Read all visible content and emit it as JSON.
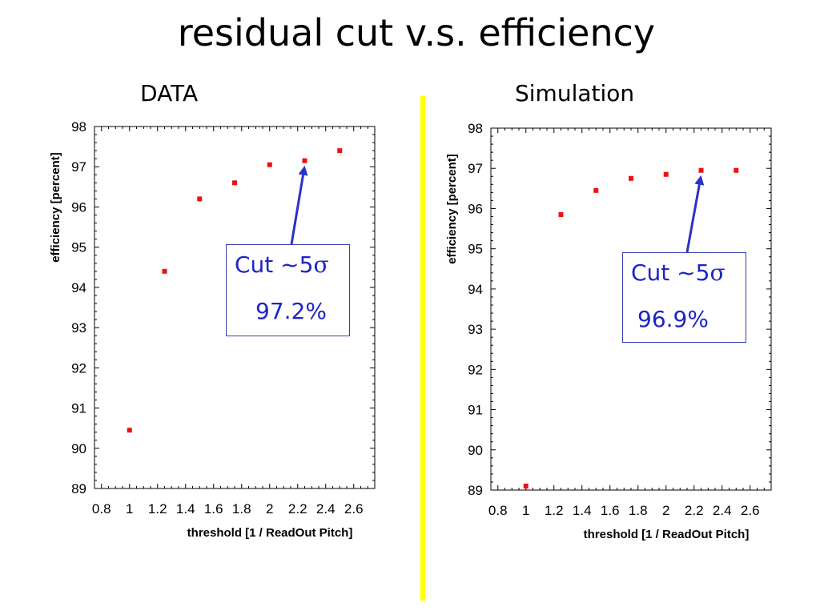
{
  "title": "residual cut v.s. efficiency",
  "panels": {
    "left": {
      "label": "DATA",
      "callout_prefix": "Cut ~5",
      "callout_symbol": "σ",
      "callout_value": "97.2%"
    },
    "right": {
      "label": "Simulation",
      "callout_prefix": "Cut ~5",
      "callout_symbol": "σ",
      "callout_value": "96.9%"
    }
  },
  "colors": {
    "marker": "#ee1111",
    "callout_text": "#1d24c8",
    "arrow": "#2a32c8",
    "divider": "#ffff00"
  },
  "chart_data": [
    {
      "type": "scatter",
      "title": "DATA",
      "xlabel": "threshold [1 / ReadOut Pitch]",
      "ylabel": "efficiency [percent]",
      "xlim": [
        0.75,
        2.75
      ],
      "ylim": [
        89,
        98
      ],
      "xticks": [
        "0.8",
        "1",
        "1.2",
        "1.4",
        "1.6",
        "1.8",
        "2",
        "2.2",
        "2.4",
        "2.6"
      ],
      "yticks": [
        "89",
        "90",
        "91",
        "92",
        "93",
        "94",
        "95",
        "96",
        "97",
        "98"
      ],
      "x": [
        1.0,
        1.25,
        1.5,
        1.75,
        2.0,
        2.25,
        2.5
      ],
      "y": [
        90.45,
        94.4,
        96.2,
        96.6,
        97.05,
        97.15,
        97.4
      ],
      "annotation": {
        "x": 2.25,
        "y": 97.15
      },
      "grid": false
    },
    {
      "type": "scatter",
      "title": "Simulation",
      "xlabel": "threshold [1 / ReadOut Pitch]",
      "ylabel": "efficiency [percent]",
      "xlim": [
        0.75,
        2.75
      ],
      "ylim": [
        89,
        98
      ],
      "xticks": [
        "0.8",
        "1",
        "1.2",
        "1.4",
        "1.6",
        "1.8",
        "2",
        "2.2",
        "2.4",
        "2.6"
      ],
      "yticks": [
        "89",
        "90",
        "91",
        "92",
        "93",
        "94",
        "95",
        "96",
        "97",
        "98"
      ],
      "x": [
        1.0,
        1.25,
        1.5,
        1.75,
        2.0,
        2.25,
        2.5
      ],
      "y": [
        89.1,
        95.85,
        96.45,
        96.75,
        96.85,
        96.95,
        96.95
      ],
      "annotation": {
        "x": 2.25,
        "y": 96.95
      },
      "grid": false
    }
  ]
}
